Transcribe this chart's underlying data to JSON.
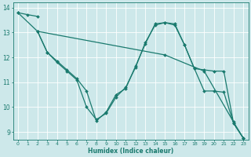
{
  "background_color": "#cde8ea",
  "grid_color": "#ffffff",
  "line_color": "#1a7a6e",
  "xlabel": "Humidex (Indice chaleur)",
  "xlim": [
    -0.5,
    23.5
  ],
  "ylim": [
    8.7,
    14.2
  ],
  "yticks": [
    9,
    10,
    11,
    12,
    13,
    14
  ],
  "xticks": [
    0,
    1,
    2,
    3,
    4,
    5,
    6,
    7,
    8,
    9,
    10,
    11,
    12,
    13,
    14,
    15,
    16,
    17,
    18,
    19,
    20,
    21,
    22,
    23
  ],
  "lines": [
    {
      "x": [
        0,
        1,
        2
      ],
      "y": [
        13.8,
        13.72,
        13.65
      ],
      "marker": "D",
      "markersize": 2.0,
      "linewidth": 0.9
    },
    {
      "x": [
        0,
        2,
        15,
        19,
        22,
        23
      ],
      "y": [
        13.8,
        13.05,
        12.1,
        11.45,
        9.4,
        8.75
      ],
      "marker": "D",
      "markersize": 2.0,
      "linewidth": 0.9
    },
    {
      "x": [
        2,
        3,
        4,
        5,
        6,
        7,
        8,
        9,
        10,
        11,
        12,
        13,
        14,
        15,
        16,
        17,
        18,
        19,
        20,
        21,
        22,
        23
      ],
      "y": [
        13.05,
        12.2,
        11.8,
        11.45,
        11.1,
        10.0,
        9.5,
        9.75,
        10.4,
        10.8,
        11.6,
        12.6,
        13.3,
        13.4,
        13.35,
        12.5,
        11.55,
        10.65,
        10.65,
        10.6,
        9.35,
        8.75
      ],
      "marker": "D",
      "markersize": 2.0,
      "linewidth": 0.9
    },
    {
      "x": [
        2,
        3,
        4,
        5,
        6,
        7,
        8,
        9,
        10,
        11,
        12,
        13,
        14,
        15,
        16,
        17,
        18,
        19,
        20,
        21,
        22,
        23
      ],
      "y": [
        13.05,
        12.2,
        11.85,
        11.5,
        11.15,
        10.65,
        9.45,
        9.8,
        10.5,
        10.75,
        11.65,
        12.55,
        13.35,
        13.4,
        13.3,
        12.5,
        11.55,
        11.5,
        11.45,
        11.45,
        9.35,
        8.75
      ],
      "marker": "D",
      "markersize": 2.0,
      "linewidth": 0.9
    }
  ]
}
